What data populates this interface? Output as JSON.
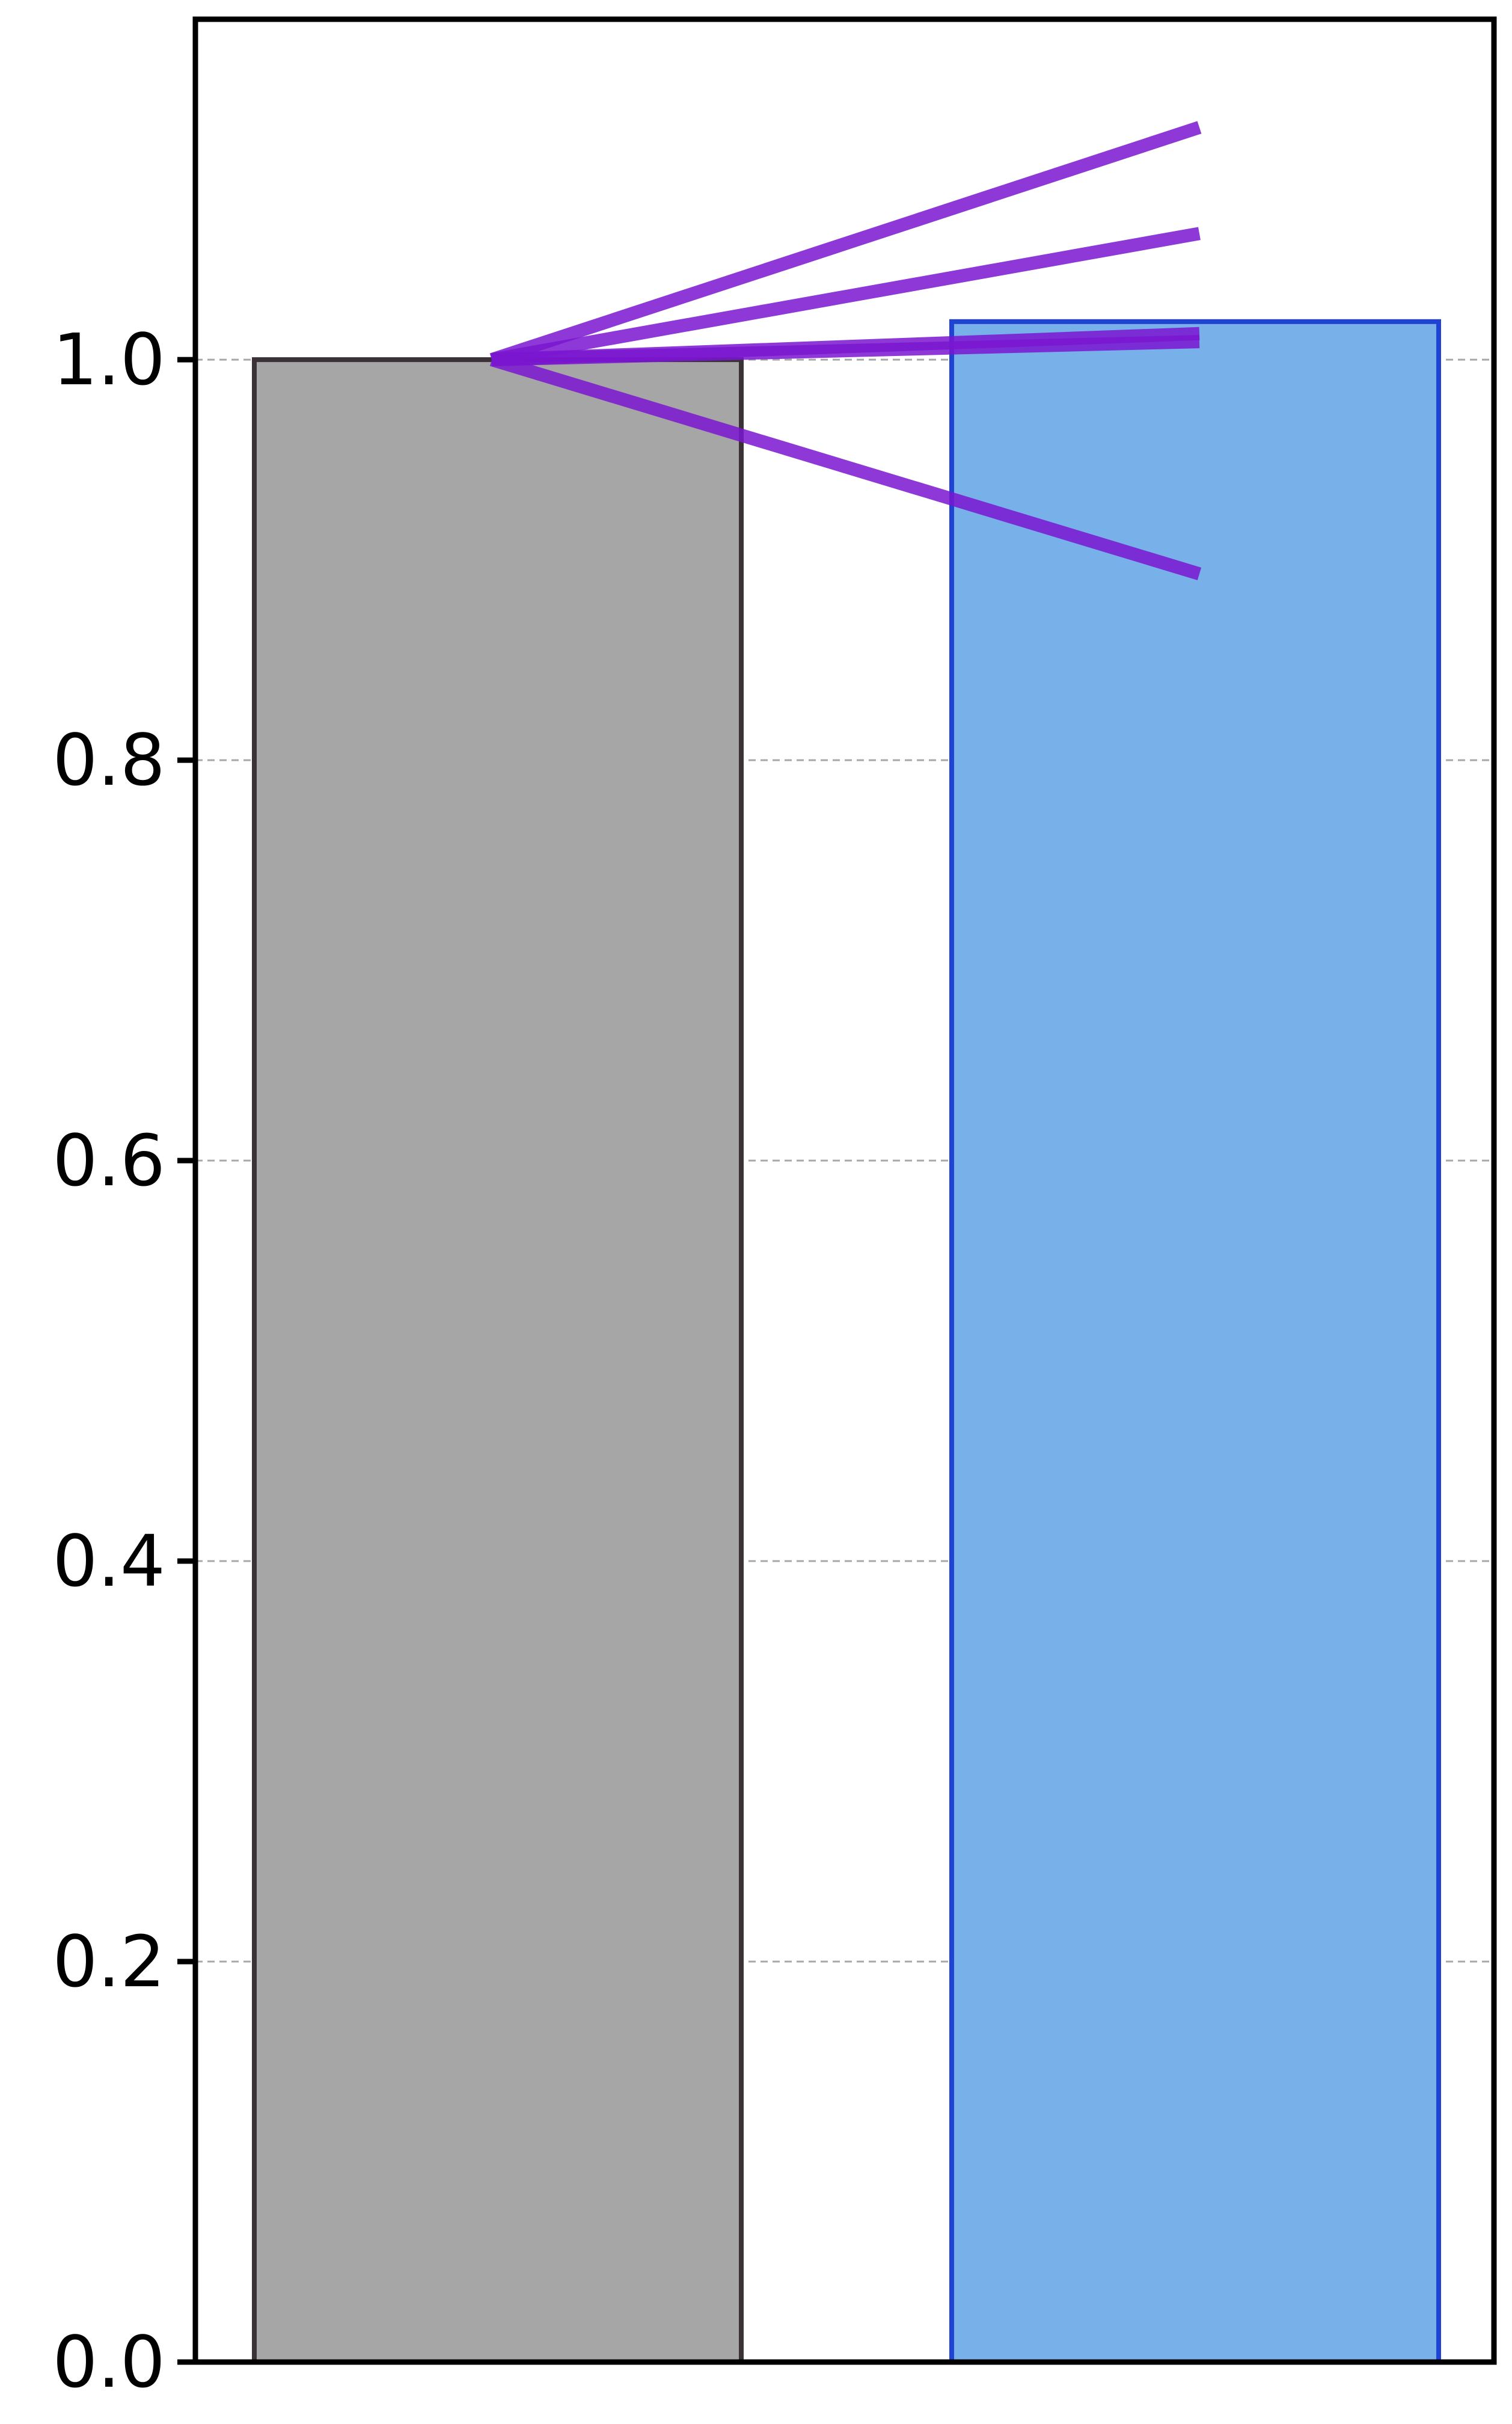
{
  "chart_data": {
    "type": "bar",
    "title": "",
    "xlabel": "",
    "ylabel": "",
    "ylim": [
      0,
      1.17
    ],
    "yticks": [
      0.0,
      0.2,
      0.4,
      0.6,
      0.8,
      1.0
    ],
    "ytick_labels": [
      "0.0",
      "0.2",
      "0.4",
      "0.6",
      "0.8",
      "1.0"
    ],
    "grid": "horizontal dashed",
    "bars": [
      {
        "value": 1.0,
        "fill": "#a6a6a6",
        "edge": "#3a3236"
      },
      {
        "value": 1.019,
        "fill": "#78b1e9",
        "edge": "#1f44d4"
      }
    ],
    "paired_lines": [
      {
        "start": 1.0,
        "end": 1.116
      },
      {
        "start": 1.0,
        "end": 1.063
      },
      {
        "start": 1.0,
        "end": 1.013
      },
      {
        "start": 1.0,
        "end": 1.009
      },
      {
        "start": 1.0,
        "end": 0.893
      }
    ],
    "line_color": "#7a16d0"
  }
}
